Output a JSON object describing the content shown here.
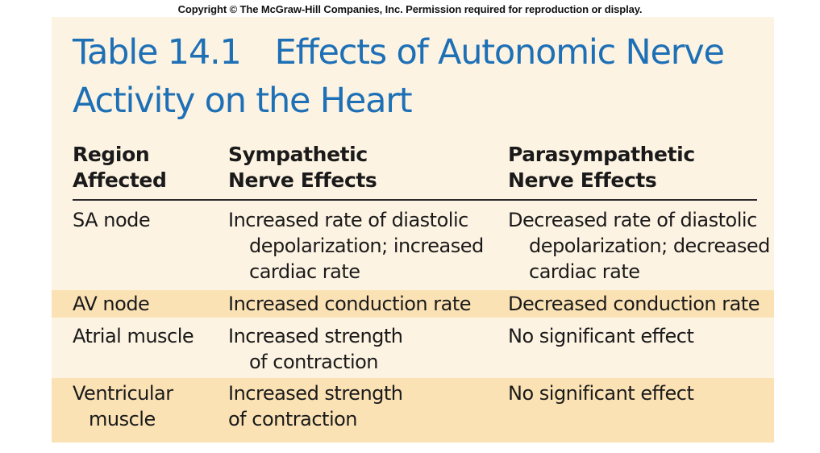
{
  "copyright": "Copyright © The McGraw-Hill Companies, Inc. Permission required for reproduction or display.",
  "title": {
    "number": "Table 14.1",
    "line1": "Effects of Autonomic Nerve",
    "line2": "Activity on the Heart"
  },
  "headers": {
    "region": [
      "Region",
      "Affected"
    ],
    "sympathetic": [
      "Sympathetic",
      "Nerve Effects"
    ],
    "parasympathetic": [
      "Parasympathetic",
      "Nerve Effects"
    ]
  },
  "rows": [
    {
      "region": [
        "SA node"
      ],
      "sympathetic": [
        "Increased rate of diastolic",
        "depolarization; increased",
        "cardiac rate"
      ],
      "parasympathetic": [
        "Decreased rate of diastolic",
        "depolarization; decreased",
        "cardiac rate"
      ],
      "shaded": false
    },
    {
      "region": [
        "AV node"
      ],
      "sympathetic": [
        "Increased conduction rate"
      ],
      "parasympathetic": [
        "Decreased conduction rate"
      ],
      "shaded": true
    },
    {
      "region": [
        "Atrial muscle"
      ],
      "sympathetic": [
        "Increased strength",
        "of contraction"
      ],
      "parasympathetic": [
        "No significant effect"
      ],
      "shaded": false
    },
    {
      "region": [
        "Ventricular",
        "muscle"
      ],
      "sympathetic": [
        "Increased strength",
        "of contraction"
      ],
      "parasympathetic": [
        "No significant effect"
      ],
      "shaded": true
    }
  ],
  "colors": {
    "title": "#1e70b6",
    "panel_background": "#fdf3e2",
    "row_shading": "#fbe2b5",
    "text": "#1a1a1a"
  }
}
